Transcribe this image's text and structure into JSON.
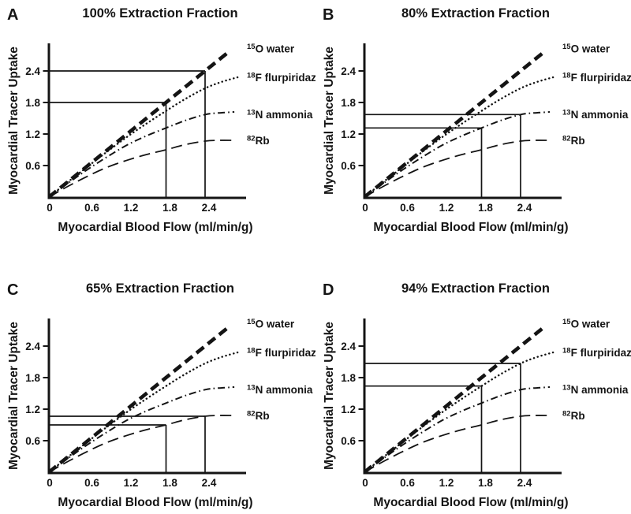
{
  "colors": {
    "ink": "#141414",
    "background": "#ffffff"
  },
  "chart_data": {
    "type": "line",
    "xlabel": "Myocardial Blood Flow (ml/min/g)",
    "ylabel": "Myocardial Tracer Uptake",
    "xlim": [
      0,
      3.0
    ],
    "ylim": [
      0,
      2.95
    ],
    "x_ticks": [
      "0",
      "0.6",
      "1.2",
      "1.8",
      "2.4"
    ],
    "y_ticks": [
      "0.6",
      "1.2",
      "1.8",
      "2.4"
    ],
    "grid": false,
    "legend_position": "right",
    "series": [
      {
        "id": "water",
        "isotope": "15",
        "name": "O water",
        "line_style": "thick-dashed",
        "x": [
          0,
          2.73
        ],
        "y": [
          0,
          2.73
        ],
        "legend_y": 2.82
      },
      {
        "id": "flurpiridaz",
        "isotope": "18",
        "name": "F flurpiridaz",
        "line_style": "dotted",
        "x": [
          0,
          0.3,
          0.6,
          0.9,
          1.2,
          1.5,
          1.8,
          2.1,
          2.4,
          2.65,
          2.9
        ],
        "y": [
          0,
          0.295,
          0.585,
          0.87,
          1.145,
          1.4,
          1.64,
          1.87,
          2.07,
          2.19,
          2.28
        ],
        "legend_y": 2.27
      },
      {
        "id": "ammonia",
        "isotope": "13",
        "name": "N ammonia",
        "line_style": "dash-dot",
        "x": [
          0,
          0.3,
          0.6,
          0.9,
          1.2,
          1.5,
          1.8,
          2.1,
          2.4,
          2.6,
          2.85
        ],
        "y": [
          0,
          0.27,
          0.53,
          0.77,
          0.99,
          1.165,
          1.315,
          1.46,
          1.57,
          1.6,
          1.62
        ],
        "legend_y": 1.57
      },
      {
        "id": "rb",
        "isotope": "82",
        "name": "Rb",
        "line_style": "long-dashed",
        "x": [
          0,
          0.3,
          0.6,
          0.9,
          1.2,
          1.5,
          1.8,
          2.1,
          2.4,
          2.6,
          2.85
        ],
        "y": [
          0,
          0.21,
          0.4,
          0.57,
          0.7,
          0.81,
          0.9,
          1.0,
          1.065,
          1.08,
          1.08
        ],
        "legend_y": 1.07
      }
    ],
    "panels": [
      {
        "letter": "A",
        "title": "100% Extraction Fraction",
        "highlight_series": "water",
        "reference_points": [
          {
            "x": 1.8,
            "y": 1.8
          },
          {
            "x": 2.4,
            "y": 2.4
          }
        ]
      },
      {
        "letter": "B",
        "title": "80% Extraction Fraction",
        "highlight_series": "ammonia",
        "reference_points": [
          {
            "x": 1.8,
            "y": 1.315
          },
          {
            "x": 2.4,
            "y": 1.57
          }
        ]
      },
      {
        "letter": "C",
        "title": "65% Extraction Fraction",
        "highlight_series": "rb",
        "reference_points": [
          {
            "x": 1.8,
            "y": 0.9
          },
          {
            "x": 2.4,
            "y": 1.065
          }
        ]
      },
      {
        "letter": "D",
        "title": "94% Extraction Fraction",
        "highlight_series": "flurpiridaz",
        "reference_points": [
          {
            "x": 1.8,
            "y": 1.64
          },
          {
            "x": 2.4,
            "y": 2.07
          }
        ]
      }
    ]
  }
}
